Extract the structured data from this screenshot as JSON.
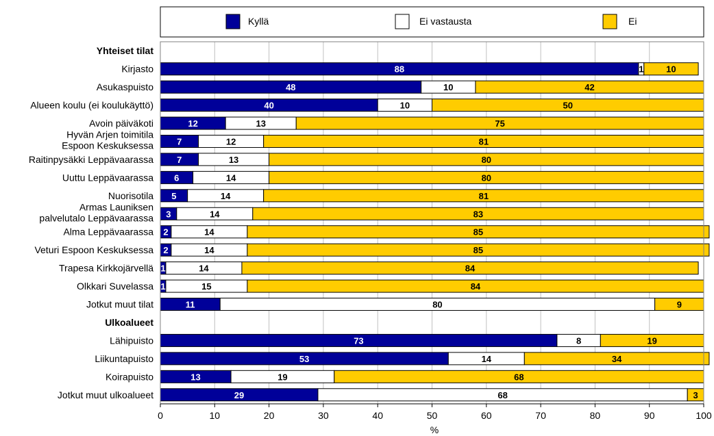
{
  "chart_data": {
    "type": "bar",
    "orientation": "horizontal",
    "stacked": true,
    "xlabel": "%",
    "xlim": [
      0,
      100
    ],
    "xticks": [
      0,
      10,
      20,
      30,
      40,
      50,
      60,
      70,
      80,
      90,
      100
    ],
    "grid": true,
    "legend_position": "top",
    "series": [
      {
        "name": "Kyllä",
        "color": "#000099",
        "label_color": "#ffffff"
      },
      {
        "name": "Ei vastausta",
        "color": "#ffffff",
        "label_color": "#000000"
      },
      {
        "name": "Ei",
        "color": "#ffcc00",
        "label_color": "#000000"
      }
    ],
    "rows": [
      {
        "kind": "group",
        "label": "Yhteiset tilat"
      },
      {
        "kind": "bar",
        "label": [
          "Kirjasto"
        ],
        "values": [
          88,
          1,
          10
        ]
      },
      {
        "kind": "bar",
        "label": [
          "Asukaspuisto"
        ],
        "values": [
          48,
          10,
          42
        ]
      },
      {
        "kind": "bar",
        "label": [
          "Alueen koulu (ei koulukäyttö)"
        ],
        "values": [
          40,
          10,
          50
        ]
      },
      {
        "kind": "bar",
        "label": [
          "Avoin päiväkoti"
        ],
        "values": [
          12,
          13,
          75
        ]
      },
      {
        "kind": "bar",
        "label": [
          "Hyvän Arjen toimitila",
          "Espoon Keskuksessa"
        ],
        "values": [
          7,
          12,
          81
        ]
      },
      {
        "kind": "bar",
        "label": [
          "Raitinpysäkki Leppävaarassa"
        ],
        "values": [
          7,
          13,
          80
        ]
      },
      {
        "kind": "bar",
        "label": [
          "Uuttu Leppävaarassa"
        ],
        "values": [
          6,
          14,
          80
        ]
      },
      {
        "kind": "bar",
        "label": [
          "Nuorisotila"
        ],
        "values": [
          5,
          14,
          81
        ]
      },
      {
        "kind": "bar",
        "label": [
          "Armas Launiksen",
          "palvelutalo Leppävaarassa"
        ],
        "values": [
          3,
          14,
          83
        ]
      },
      {
        "kind": "bar",
        "label": [
          "Alma Leppävaarassa"
        ],
        "values": [
          2,
          14,
          85
        ]
      },
      {
        "kind": "bar",
        "label": [
          "Veturi Espoon Keskuksessa"
        ],
        "values": [
          2,
          14,
          85
        ]
      },
      {
        "kind": "bar",
        "label": [
          "Trapesa Kirkkojärvellä"
        ],
        "values": [
          1,
          14,
          84
        ]
      },
      {
        "kind": "bar",
        "label": [
          "Olkkari Suvelassa"
        ],
        "values": [
          1,
          15,
          84
        ]
      },
      {
        "kind": "bar",
        "label": [
          "Jotkut muut tilat"
        ],
        "values": [
          11,
          80,
          9
        ]
      },
      {
        "kind": "group",
        "label": "Ulkoalueet"
      },
      {
        "kind": "bar",
        "label": [
          "Lähipuisto"
        ],
        "values": [
          73,
          8,
          19
        ]
      },
      {
        "kind": "bar",
        "label": [
          "Liikuntapuisto"
        ],
        "values": [
          53,
          14,
          34
        ]
      },
      {
        "kind": "bar",
        "label": [
          "Koirapuisto"
        ],
        "values": [
          13,
          19,
          68
        ]
      },
      {
        "kind": "bar",
        "label": [
          "Jotkut muut ulkoalueet"
        ],
        "values": [
          29,
          68,
          3
        ]
      }
    ]
  }
}
